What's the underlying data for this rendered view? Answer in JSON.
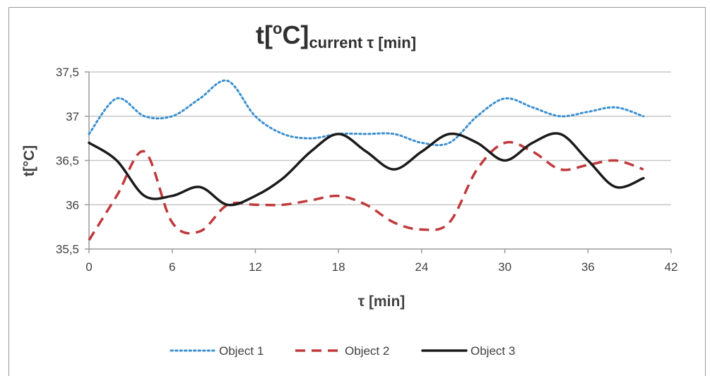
{
  "chart_data": {
    "type": "line",
    "title": {
      "main": "t[",
      "sup": "o",
      "main2": "C]",
      "sub": "current τ [min]"
    },
    "xlabel": "τ [min]",
    "ylabel": "t[°C]",
    "xlim": [
      0,
      42
    ],
    "ylim": [
      35.5,
      37.5
    ],
    "xticks": [
      {
        "value": 0,
        "label": "0"
      },
      {
        "value": 6,
        "label": "6"
      },
      {
        "value": 12,
        "label": "12"
      },
      {
        "value": 18,
        "label": "18"
      },
      {
        "value": 24,
        "label": "24"
      },
      {
        "value": 30,
        "label": "30"
      },
      {
        "value": 36,
        "label": "36"
      },
      {
        "value": 42,
        "label": "42"
      }
    ],
    "yticks": [
      {
        "value": 35.5,
        "label": "35,5"
      },
      {
        "value": 36,
        "label": "36"
      },
      {
        "value": 36.5,
        "label": "36,5"
      },
      {
        "value": 37,
        "label": "37"
      },
      {
        "value": 37.5,
        "label": "37,5"
      }
    ],
    "grid": "horizontal",
    "legend_position": "bottom",
    "series": [
      {
        "name": "Object 1",
        "color": "#3a8fd0",
        "style": "dotted",
        "x": [
          0,
          2,
          4,
          6,
          8,
          10,
          12,
          14,
          16,
          18,
          20,
          22,
          24,
          26,
          28,
          30,
          32,
          34,
          36,
          38,
          40
        ],
        "y": [
          36.8,
          37.2,
          37.0,
          37.0,
          37.2,
          37.4,
          37.0,
          36.8,
          36.75,
          36.8,
          36.8,
          36.8,
          36.7,
          36.7,
          37.0,
          37.2,
          37.1,
          37.0,
          37.05,
          37.1,
          37.0
        ]
      },
      {
        "name": "Object 2",
        "color": "#c0393b",
        "style": "dashed",
        "x": [
          0,
          2,
          4,
          6,
          8,
          10,
          12,
          14,
          16,
          18,
          20,
          22,
          24,
          26,
          28,
          30,
          32,
          34,
          36,
          38,
          40
        ],
        "y": [
          35.6,
          36.1,
          36.6,
          35.8,
          35.7,
          36.0,
          36.0,
          36.0,
          36.05,
          36.1,
          36.0,
          35.8,
          35.72,
          35.8,
          36.4,
          36.7,
          36.6,
          36.4,
          36.45,
          36.5,
          36.4
        ]
      },
      {
        "name": "Object 3",
        "color": "#1a1a1a",
        "style": "solid",
        "x": [
          0,
          2,
          4,
          6,
          8,
          10,
          12,
          14,
          16,
          18,
          20,
          22,
          24,
          26,
          28,
          30,
          32,
          34,
          36,
          38,
          40
        ],
        "y": [
          36.7,
          36.5,
          36.1,
          36.1,
          36.2,
          36.0,
          36.1,
          36.3,
          36.6,
          36.8,
          36.6,
          36.4,
          36.6,
          36.8,
          36.7,
          36.5,
          36.7,
          36.8,
          36.5,
          36.2,
          36.3
        ]
      }
    ]
  }
}
